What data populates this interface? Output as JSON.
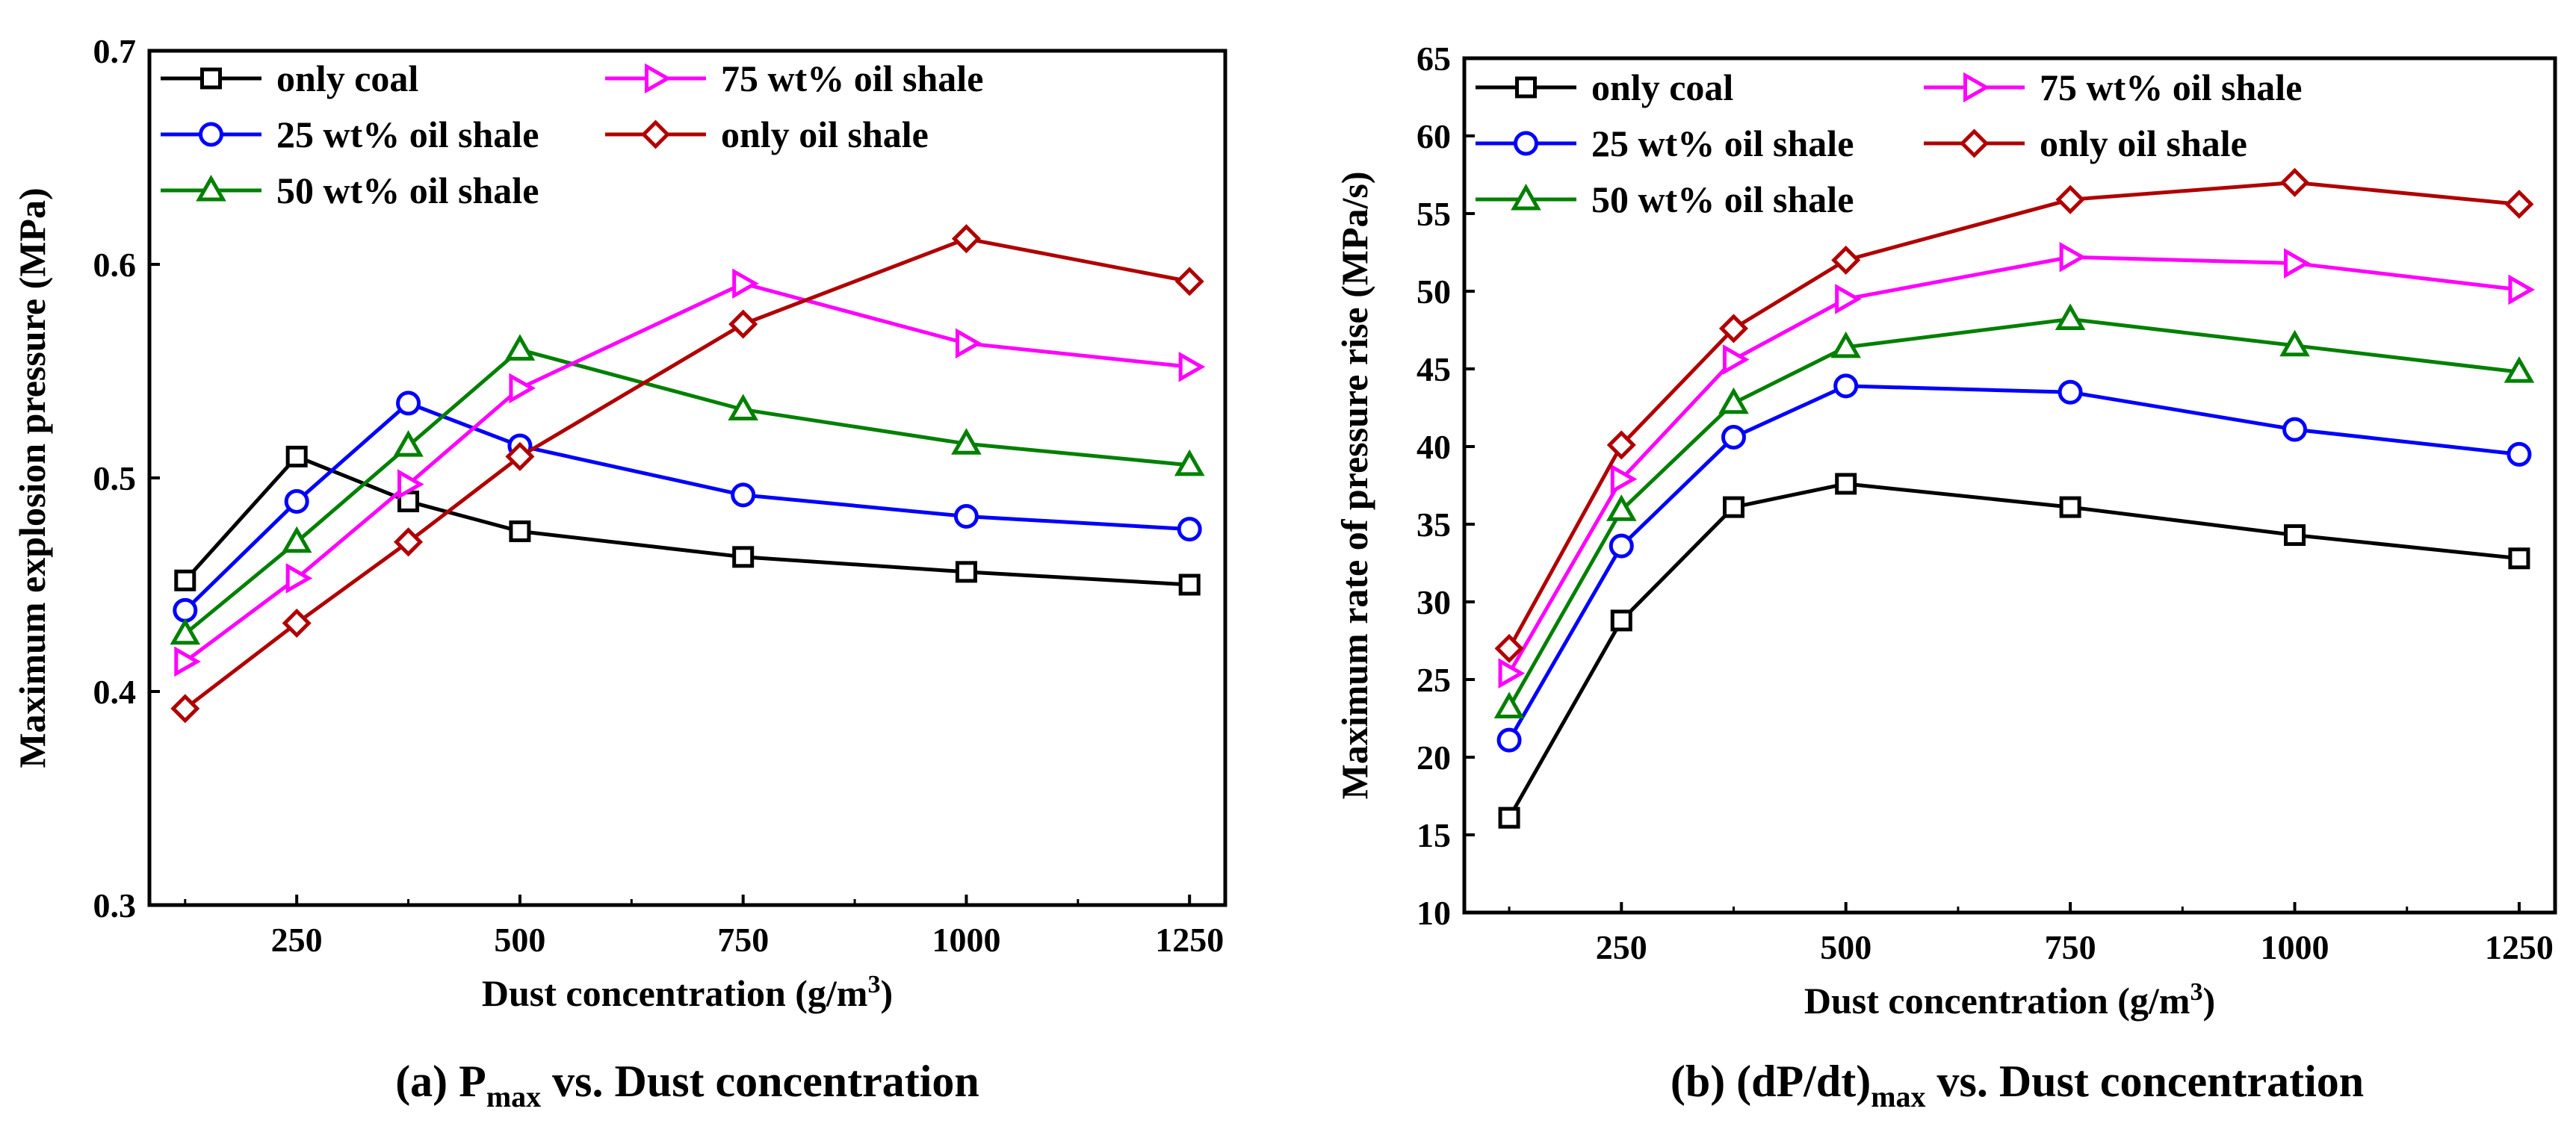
{
  "chart_data": [
    {
      "type": "line",
      "panel": "a",
      "caption": {
        "prefix": "(a) P",
        "sub": "max",
        "suffix": " vs. Dust concentration"
      },
      "xlabel": {
        "text": "Dust concentration (g/m",
        "sup": "3",
        "close": ")"
      },
      "ylabel": "Maximum explosion pressure (MPa)",
      "xlim": [
        85,
        1290
      ],
      "ylim": [
        0.3,
        0.7
      ],
      "x_ticks": [
        250,
        500,
        750,
        1000,
        1250
      ],
      "x_tick_labels": [
        "250",
        "500",
        "750",
        "1000",
        "1250"
      ],
      "y_ticks": [
        0.3,
        0.4,
        0.5,
        0.6,
        0.7
      ],
      "y_tick_labels": [
        "0.3",
        "0.4",
        "0.5",
        "0.6",
        "0.7"
      ],
      "x": [
        125,
        250,
        375,
        500,
        750,
        1000,
        1250
      ],
      "series": [
        {
          "name": "only coal",
          "color": "#000000",
          "marker": "square",
          "values": [
            0.452,
            0.51,
            0.489,
            0.475,
            0.463,
            0.456,
            0.45
          ]
        },
        {
          "name": "25 wt% oil shale",
          "color": "#0000ff",
          "marker": "circle",
          "values": [
            0.438,
            0.489,
            0.535,
            0.515,
            0.492,
            0.482,
            0.476
          ]
        },
        {
          "name": "50 wt% oil shale",
          "color": "#008000",
          "marker": "triangle",
          "values": [
            0.427,
            0.47,
            0.515,
            0.56,
            0.532,
            0.516,
            0.506
          ]
        },
        {
          "name": "75 wt% oil shale",
          "color": "#ff00ff",
          "marker": "triangle-right",
          "values": [
            0.414,
            0.453,
            0.497,
            0.542,
            0.591,
            0.563,
            0.552
          ]
        },
        {
          "name": "only oil shale",
          "color": "#b00000",
          "marker": "diamond",
          "values": [
            0.392,
            0.432,
            0.47,
            0.51,
            0.572,
            0.612,
            0.592
          ]
        }
      ],
      "legend": "top-left"
    },
    {
      "type": "line",
      "panel": "b",
      "caption": {
        "prefix": "(b) (dP/dt)",
        "sub": "max",
        "suffix": " vs. Dust concentration"
      },
      "xlabel": {
        "text": "Dust concentration (g/m",
        "sup": "3",
        "close": ")"
      },
      "ylabel": "Maximum rate of pressure rise (MPa/s)",
      "xlim": [
        75,
        1290
      ],
      "ylim": [
        10,
        65
      ],
      "x_ticks": [
        250,
        500,
        750,
        1000,
        1250
      ],
      "x_tick_labels": [
        "250",
        "500",
        "750",
        "1000",
        "1250"
      ],
      "y_ticks": [
        10,
        15,
        20,
        25,
        30,
        35,
        40,
        45,
        50,
        55,
        60,
        65
      ],
      "y_tick_labels": [
        "10",
        "15",
        "20",
        "25",
        "30",
        "35",
        "40",
        "45",
        "50",
        "55",
        "60",
        "65"
      ],
      "x": [
        125,
        250,
        375,
        500,
        750,
        1000,
        1250
      ],
      "series": [
        {
          "name": "only coal",
          "color": "#000000",
          "marker": "square",
          "values": [
            16.1,
            28.8,
            36.1,
            37.6,
            36.1,
            34.3,
            32.8
          ]
        },
        {
          "name": "25 wt% oil shale",
          "color": "#0000ff",
          "marker": "circle",
          "values": [
            21.1,
            33.6,
            40.6,
            43.9,
            43.5,
            41.1,
            39.5
          ]
        },
        {
          "name": "50 wt% oil shale",
          "color": "#008000",
          "marker": "triangle",
          "values": [
            23.2,
            35.9,
            42.8,
            46.4,
            48.2,
            46.5,
            44.8
          ]
        },
        {
          "name": "75 wt% oil shale",
          "color": "#ff00ff",
          "marker": "triangle-right",
          "values": [
            25.4,
            37.9,
            45.6,
            49.5,
            52.2,
            51.8,
            50.1
          ]
        },
        {
          "name": "only oil shale",
          "color": "#b00000",
          "marker": "diamond",
          "values": [
            27.0,
            40.1,
            47.6,
            52.0,
            55.9,
            57.0,
            55.6
          ]
        }
      ],
      "legend": "top-left"
    }
  ]
}
